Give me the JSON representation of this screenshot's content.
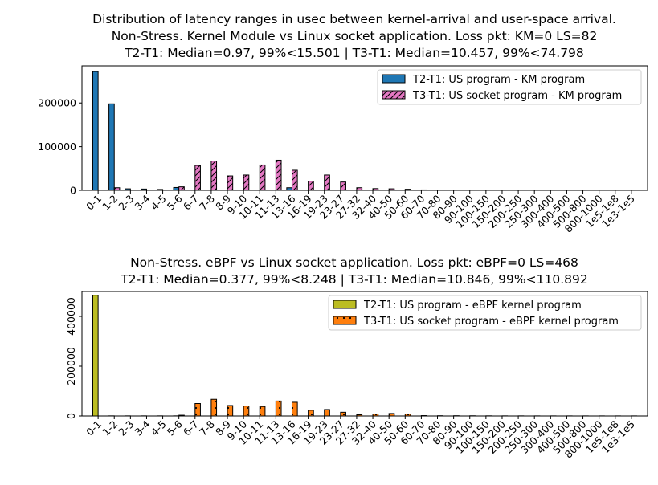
{
  "chart_data": [
    {
      "type": "bar",
      "title_lines": [
        "Distribution of latency ranges in usec between kernel-arrival and user-space arrival.",
        "Non-Stress. Kernel Module vs Linux socket application. Loss pkt: KM=0 LS=82",
        "T2-T1: Median=0.97, 99%<15.501 | T3-T1: Median=10.457, 99%<74.798"
      ],
      "categories": [
        "0-1",
        "1-2",
        "2-3",
        "3-4",
        "4-5",
        "5-6",
        "6-7",
        "7-8",
        "8-9",
        "9-10",
        "10-11",
        "11-13",
        "13-16",
        "16-19",
        "19-23",
        "23-27",
        "27-32",
        "32-40",
        "40-50",
        "50-60",
        "60-70",
        "70-80",
        "80-90",
        "90-100",
        "100-150",
        "150-200",
        "200-250",
        "250-300",
        "300-400",
        "400-500",
        "500-800",
        "800-1000",
        "1e5-1e8",
        "1e3-1e5"
      ],
      "series": [
        {
          "name": "T2-T1: US program - KM program",
          "color": "#1f77b4",
          "hatch": "none",
          "values": [
            272000,
            198000,
            3500,
            3000,
            2000,
            6500,
            0,
            0,
            0,
            0,
            0,
            0,
            6000,
            0,
            0,
            0,
            0,
            0,
            0,
            0,
            0,
            0,
            0,
            0,
            0,
            0,
            0,
            0,
            0,
            0,
            0,
            0,
            0,
            0
          ]
        },
        {
          "name": "T3-T1: US socket program - KM program",
          "color": "#e377c2",
          "hatch": "diagonal",
          "values": [
            0,
            6000,
            0,
            0,
            0,
            8000,
            57000,
            67000,
            33000,
            35000,
            58000,
            69000,
            46000,
            21000,
            35000,
            19000,
            6000,
            4000,
            3500,
            2500,
            1000,
            800,
            600,
            500,
            500,
            400,
            400,
            300,
            300,
            300,
            300,
            300,
            300,
            300
          ]
        }
      ],
      "yticks": [
        0,
        100000,
        200000
      ],
      "ylim": [
        0,
        285000
      ],
      "legend": "top-right"
    },
    {
      "type": "bar",
      "title_lines": [
        "Non-Stress. eBPF vs Linux socket application. Loss pkt: eBPF=0 LS=468",
        "T2-T1: Median=0.377, 99%<8.248 | T3-T1: Median=10.846, 99%<110.892"
      ],
      "categories": [
        "0-1",
        "1-2",
        "2-3",
        "3-4",
        "4-5",
        "5-6",
        "6-7",
        "7-8",
        "8-9",
        "9-10",
        "10-11",
        "11-13",
        "13-16",
        "16-19",
        "19-23",
        "23-27",
        "27-32",
        "32-40",
        "40-50",
        "50-60",
        "60-70",
        "70-80",
        "80-90",
        "90-100",
        "100-150",
        "150-200",
        "200-250",
        "250-300",
        "300-400",
        "400-500",
        "500-800",
        "800-1000",
        "1e5-1e8",
        "1e3-1e5"
      ],
      "series": [
        {
          "name": "T2-T1: US program - eBPF kernel program",
          "color": "#bcbd22",
          "hatch": "none",
          "values": [
            485000,
            500,
            500,
            500,
            500,
            500,
            0,
            0,
            0,
            0,
            0,
            0,
            0,
            0,
            0,
            0,
            0,
            0,
            0,
            0,
            0,
            0,
            0,
            0,
            0,
            0,
            0,
            0,
            0,
            0,
            0,
            0,
            0,
            0
          ]
        },
        {
          "name": "T3-T1: US socket program - eBPF kernel program",
          "color": "#ff7f0e",
          "hatch": "dots",
          "values": [
            0,
            0,
            0,
            0,
            0,
            3000,
            50000,
            67000,
            42000,
            40000,
            38000,
            60000,
            55000,
            23000,
            26000,
            15000,
            5000,
            8000,
            10000,
            8000,
            1500,
            1000,
            1000,
            800,
            600,
            500,
            500,
            400,
            400,
            400,
            400,
            400,
            400,
            400
          ]
        }
      ],
      "yticks": [
        0,
        200000,
        400000
      ],
      "ylim": [
        0,
        500000
      ],
      "legend": "top-right"
    }
  ]
}
